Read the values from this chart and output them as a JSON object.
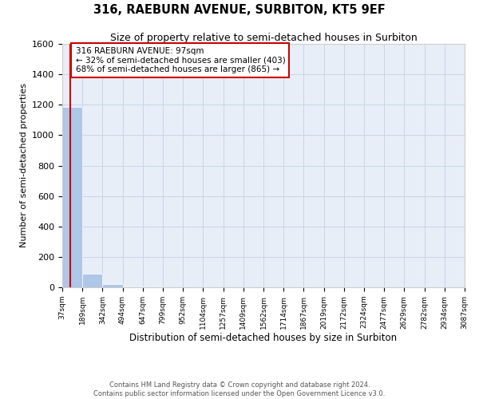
{
  "title1": "316, RAEBURN AVENUE, SURBITON, KT5 9EF",
  "title2": "Size of property relative to semi-detached houses in Surbiton",
  "xlabel": "Distribution of semi-detached houses by size in Surbiton",
  "ylabel": "Number of semi-detached properties",
  "annotation_line1": "316 RAEBURN AVENUE: 97sqm",
  "annotation_line2": "← 32% of semi-detached houses are smaller (403)",
  "annotation_line3": "68% of semi-detached houses are larger (865) →",
  "property_size": 97,
  "footer_line1": "Contains HM Land Registry data © Crown copyright and database right 2024.",
  "footer_line2": "Contains public sector information licensed under the Open Government Licence v3.0.",
  "bar_edges": [
    37,
    189,
    342,
    494,
    647,
    799,
    952,
    1104,
    1257,
    1409,
    1562,
    1714,
    1867,
    2019,
    2172,
    2324,
    2477,
    2629,
    2782,
    2934,
    3087
  ],
  "bar_heights": [
    1185,
    90,
    20,
    5,
    3,
    2,
    1,
    1,
    0,
    0,
    0,
    0,
    0,
    0,
    0,
    0,
    0,
    0,
    0,
    0
  ],
  "bar_color": "#aec6e8",
  "vline_color": "#cc0000",
  "annotation_box_color": "#cc0000",
  "grid_color": "#c8d4e8",
  "background_color": "#e8eef8",
  "ylim": [
    0,
    1600
  ],
  "yticks": [
    0,
    200,
    400,
    600,
    800,
    1000,
    1200,
    1400,
    1600
  ]
}
